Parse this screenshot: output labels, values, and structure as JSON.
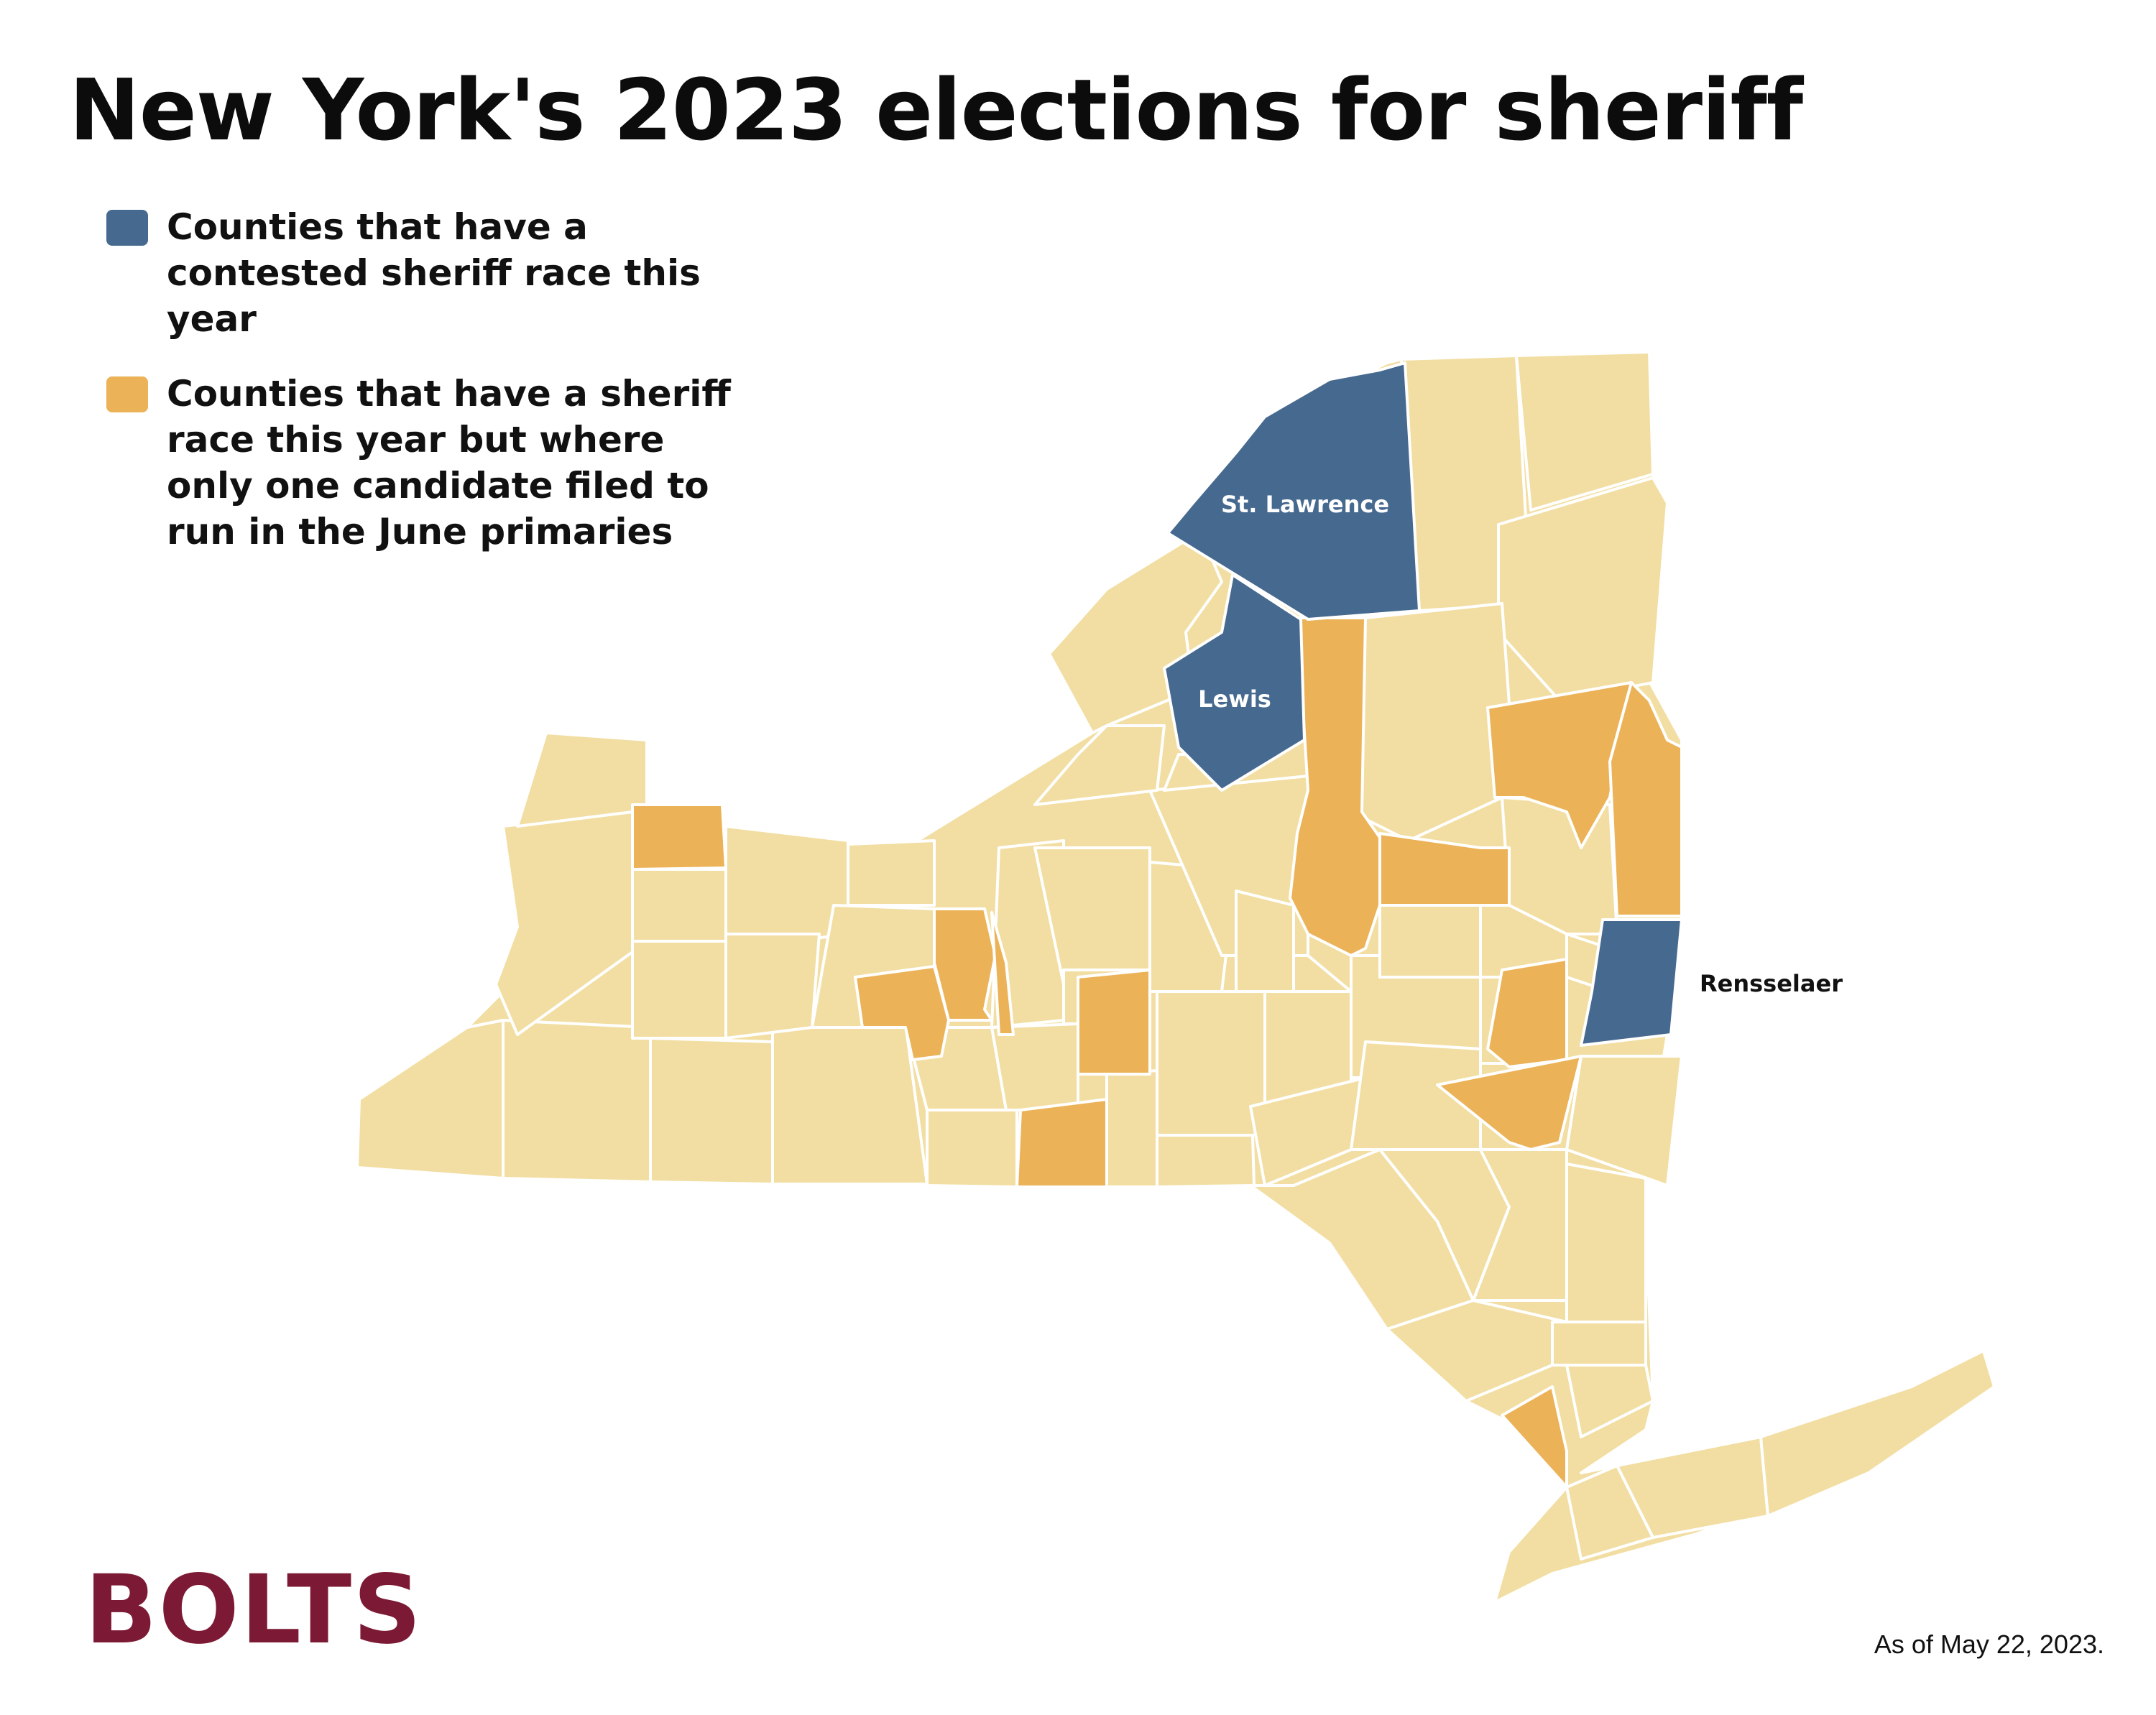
{
  "title": "New York's 2023 elections for sheriff",
  "legend": [
    {
      "text": "Counties that have a contested sheriff race this year",
      "color": "#46698f"
    },
    {
      "text": "Counties that have a sheriff race this year but where only one candidate filed to run in the June primaries",
      "color": "#ebb257"
    }
  ],
  "colors": {
    "base": "#f2dea2",
    "contested": "#46698f",
    "uncontested": "#ebb257",
    "border": "#ffffff"
  },
  "labels": {
    "st_lawrence": "St. Lawrence",
    "lewis": "Lewis",
    "rensselaer": "Rensselaer"
  },
  "logo": "BOLTS",
  "footnote": "As of May 22, 2023."
}
